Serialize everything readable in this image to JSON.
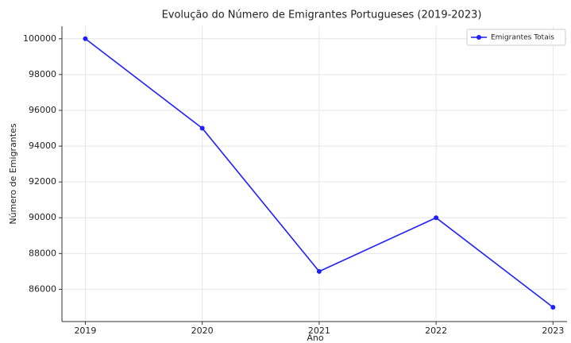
{
  "chart_data": {
    "type": "line",
    "title": "Evolução do Número de Emigrantes Portugueses (2019-2023)",
    "x_label": "Ano",
    "y_label": "Número de Emigrantes",
    "x": [
      2019,
      2020,
      2021,
      2022,
      2023
    ],
    "series": [
      {
        "name": "Emigrantes Totais",
        "color": "#1f1fff",
        "values": [
          100000,
          95000,
          87000,
          90000,
          85000
        ]
      }
    ],
    "xlim": [
      2018.8,
      2023.12
    ],
    "xticks": [
      2019,
      2020,
      2021,
      2022,
      2023
    ],
    "ylim": [
      84200,
      100700
    ],
    "yticks": [
      86000,
      88000,
      90000,
      92000,
      94000,
      96000,
      98000,
      100000
    ],
    "grid": true,
    "legend": "upper right"
  }
}
